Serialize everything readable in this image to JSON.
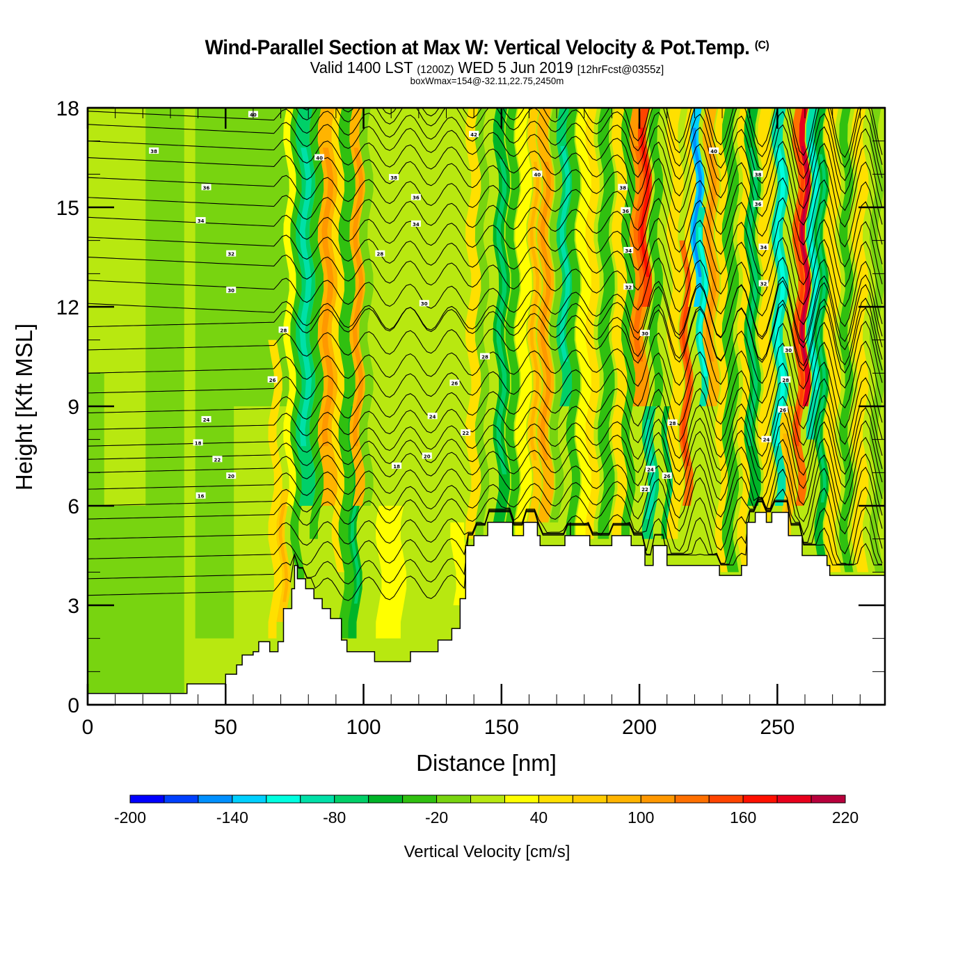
{
  "header": {
    "title": "Wind-Parallel Section at Max W: Vertical Velocity & Pot.Temp.",
    "copyright": "(C)",
    "valid_prefix": "Valid 1400 LST",
    "valid_utc": "(1200Z)",
    "valid_date": "WED 5 Jun 2019",
    "forecast": "[12hrFcst@0355z]",
    "box_wmax": "boxWmax=154@-32.11,22.75,2450m"
  },
  "chart_data": {
    "type": "heatmap",
    "title": "Wind-Parallel Section at Max W: Vertical Velocity & Pot.Temp.",
    "xlabel": "Distance [nm]",
    "ylabel": "Height [Kft MSL]",
    "xlim": [
      0,
      289
    ],
    "ylim": [
      0,
      18
    ],
    "x_ticks": [
      0,
      50,
      100,
      150,
      200,
      250
    ],
    "x_tick_labels": [
      "0",
      "50",
      "100",
      "150",
      "200",
      "250"
    ],
    "y_ticks": [
      0,
      3,
      6,
      9,
      12,
      15,
      18
    ],
    "y_tick_labels": [
      "0",
      "3",
      "6",
      "9",
      "12",
      "15",
      "18"
    ],
    "x_minor_step": 10,
    "y_minor_step": 1,
    "colorbar": {
      "title": "Vertical Velocity [cm/s]",
      "levels": [
        -200,
        -180,
        -160,
        -140,
        -120,
        -100,
        -80,
        -60,
        -40,
        -20,
        0,
        20,
        40,
        60,
        80,
        100,
        120,
        140,
        160,
        180,
        200,
        220
      ],
      "tick_labels": [
        "-200",
        "-140",
        "-80",
        "-20",
        "40",
        "100",
        "160",
        "220"
      ],
      "tick_values": [
        -200,
        -140,
        -80,
        -20,
        40,
        100,
        160,
        220
      ],
      "colors": [
        "#0000ff",
        "#0040ff",
        "#0090ff",
        "#00d0ff",
        "#00ffe0",
        "#00e0a8",
        "#00d068",
        "#00b428",
        "#30c010",
        "#78d410",
        "#b8e810",
        "#ffff00",
        "#ffe000",
        "#ffcc00",
        "#ffb400",
        "#ff9800",
        "#ff7000",
        "#ff4400",
        "#ff1000",
        "#e8001c",
        "#b8003c"
      ]
    },
    "background_w": 10,
    "w_bands": [
      {
        "x": 3,
        "w": -10,
        "z0": 0,
        "z1": 10,
        "width": 6
      },
      {
        "x": 12,
        "w": -10,
        "z0": 0,
        "z1": 6,
        "width": 20
      },
      {
        "x": 28,
        "w": -10,
        "z0": 0,
        "z1": 18,
        "width": 14
      },
      {
        "x": 46,
        "w": -10,
        "z0": 2,
        "z1": 18,
        "width": 14
      },
      {
        "x": 62,
        "w": -10,
        "z0": 9,
        "z1": 18,
        "width": 30
      },
      {
        "x": 68,
        "w": 50,
        "z0": 2,
        "z1": 11,
        "width": 3
      },
      {
        "x": 71,
        "w": 70,
        "z0": 2.5,
        "z1": 6.5,
        "width": 3
      },
      {
        "x": 74,
        "w": 20,
        "z0": 6,
        "z1": 18,
        "width": 4
      },
      {
        "x": 76,
        "w": -40,
        "z0": 3,
        "z1": 18,
        "width": 3
      },
      {
        "x": 79,
        "w": -70,
        "z0": 6,
        "z1": 18,
        "width": 5
      },
      {
        "x": 83,
        "w": -30,
        "z0": 5,
        "z1": 18,
        "width": 3
      },
      {
        "x": 87,
        "w": 80,
        "z0": 6,
        "z1": 18,
        "width": 5
      },
      {
        "x": 91,
        "w": 40,
        "z0": 4,
        "z1": 18,
        "width": 3
      },
      {
        "x": 94,
        "w": -40,
        "z0": 2,
        "z1": 18,
        "width": 4
      },
      {
        "x": 97,
        "w": -60,
        "z0": 2,
        "z1": 9,
        "width": 3
      },
      {
        "x": 98,
        "w": 80,
        "z0": 6,
        "z1": 18,
        "width": 4
      },
      {
        "x": 101,
        "w": -20,
        "z0": 6,
        "z1": 18,
        "width": 3
      },
      {
        "x": 110,
        "w": 30,
        "z0": 2,
        "z1": 6,
        "width": 9
      },
      {
        "x": 135,
        "w": 20,
        "z0": 3,
        "z1": 5.5,
        "width": 5
      },
      {
        "x": 140,
        "w": 40,
        "z0": 5,
        "z1": 18,
        "width": 4
      },
      {
        "x": 143,
        "w": -20,
        "z0": 5,
        "z1": 18,
        "width": 3
      },
      {
        "x": 150,
        "w": -60,
        "z0": 5,
        "z1": 18,
        "width": 4
      },
      {
        "x": 154,
        "w": -30,
        "z0": 5,
        "z1": 18,
        "width": 3
      },
      {
        "x": 158,
        "w": 30,
        "z0": 5,
        "z1": 18,
        "width": 4
      },
      {
        "x": 162,
        "w": 60,
        "z0": 5.5,
        "z1": 18,
        "width": 3
      },
      {
        "x": 166,
        "w": 90,
        "z0": 5.5,
        "z1": 18,
        "width": 4
      },
      {
        "x": 170,
        "w": -20,
        "z0": 5.5,
        "z1": 18,
        "width": 3
      },
      {
        "x": 173,
        "w": -80,
        "z0": 9,
        "z1": 18,
        "width": 4
      },
      {
        "x": 176,
        "w": -40,
        "z0": 5,
        "z1": 18,
        "width": 3
      },
      {
        "x": 180,
        "w": 30,
        "z0": 5,
        "z1": 18,
        "width": 4
      },
      {
        "x": 183,
        "w": 40,
        "z0": 5,
        "z1": 18,
        "width": 3
      },
      {
        "x": 188,
        "w": -30,
        "z0": 5,
        "z1": 18,
        "width": 4
      },
      {
        "x": 193,
        "w": 40,
        "z0": 5,
        "z1": 18,
        "width": 4
      },
      {
        "x": 196,
        "w": -40,
        "z0": 5,
        "z1": 18,
        "width": 3
      },
      {
        "x": 200,
        "w": 100,
        "z0": 9,
        "z1": 18,
        "width": 5
      },
      {
        "x": 202,
        "w": 150,
        "z0": 12,
        "z1": 18,
        "width": 3
      },
      {
        "x": 204,
        "w": -80,
        "z0": 5,
        "z1": 9,
        "width": 4
      },
      {
        "x": 206,
        "w": -30,
        "z0": 9,
        "z1": 18,
        "width": 3
      },
      {
        "x": 211,
        "w": -60,
        "z0": 5,
        "z1": 9,
        "width": 4
      },
      {
        "x": 213,
        "w": 40,
        "z0": 5,
        "z1": 18,
        "width": 4
      },
      {
        "x": 217,
        "w": 130,
        "z0": 6,
        "z1": 14,
        "width": 3
      },
      {
        "x": 219,
        "w": 50,
        "z0": 12,
        "z1": 18,
        "width": 3
      },
      {
        "x": 221,
        "w": -140,
        "z0": 12,
        "z1": 18,
        "width": 3
      },
      {
        "x": 223,
        "w": -90,
        "z0": 9,
        "z1": 15,
        "width": 3
      },
      {
        "x": 226,
        "w": 80,
        "z0": 9,
        "z1": 18,
        "width": 4
      },
      {
        "x": 230,
        "w": 40,
        "z0": 4,
        "z1": 18,
        "width": 3
      },
      {
        "x": 233,
        "w": -40,
        "z0": 4,
        "z1": 18,
        "width": 4
      },
      {
        "x": 238,
        "w": 40,
        "z0": 4,
        "z1": 18,
        "width": 3
      },
      {
        "x": 241,
        "w": -60,
        "z0": 6,
        "z1": 18,
        "width": 4
      },
      {
        "x": 246,
        "w": 40,
        "z0": 5.5,
        "z1": 18,
        "width": 4
      },
      {
        "x": 251,
        "w": -90,
        "z0": 6,
        "z1": 18,
        "width": 4
      },
      {
        "x": 254,
        "w": 60,
        "z0": 4.5,
        "z1": 9,
        "width": 4
      },
      {
        "x": 258,
        "w": 120,
        "z0": 6,
        "z1": 18,
        "width": 3
      },
      {
        "x": 260,
        "w": 190,
        "z0": 9,
        "z1": 18,
        "width": 2
      },
      {
        "x": 263,
        "w": -100,
        "z0": 8,
        "z1": 18,
        "width": 3
      },
      {
        "x": 266,
        "w": -60,
        "z0": 4,
        "z1": 18,
        "width": 3
      },
      {
        "x": 270,
        "w": 40,
        "z0": 4,
        "z1": 18,
        "width": 4
      },
      {
        "x": 275,
        "w": -30,
        "z0": 4,
        "z1": 18,
        "width": 3
      },
      {
        "x": 280,
        "w": 40,
        "z0": 4,
        "z1": 18,
        "width": 4
      },
      {
        "x": 286,
        "w": -20,
        "z0": 4,
        "z1": 18,
        "width": 3
      }
    ],
    "terrain": {
      "x": [
        0,
        36,
        36,
        50,
        50,
        54,
        54,
        56,
        56,
        60,
        60,
        62,
        62,
        66,
        66,
        69,
        69,
        71,
        71,
        74,
        74,
        75,
        75,
        76,
        76,
        79,
        79,
        82,
        82,
        85,
        85,
        88,
        88,
        92,
        92,
        94,
        94,
        104,
        104,
        117,
        117,
        127,
        127,
        132,
        132,
        135,
        135,
        137,
        137,
        140,
        140,
        145,
        145,
        154,
        154,
        158,
        158,
        163,
        163,
        164,
        164,
        173,
        173,
        175,
        175,
        175,
        175,
        182,
        182,
        190,
        190,
        197,
        197,
        202,
        202,
        205,
        205,
        210,
        210,
        211,
        211,
        229,
        229,
        237,
        237,
        239,
        239,
        242,
        242,
        246,
        246,
        248,
        248,
        254,
        254,
        259,
        259,
        268,
        268,
        269,
        269,
        289
      ],
      "h": [
        0.34,
        0.34,
        0.63,
        0.63,
        0.92,
        0.92,
        1.2,
        1.2,
        1.5,
        1.5,
        1.6,
        1.6,
        1.9,
        1.9,
        1.6,
        1.6,
        1.9,
        1.9,
        2.9,
        2.9,
        3.5,
        3.5,
        4.2,
        4.2,
        3.8,
        3.8,
        3.5,
        3.5,
        3.2,
        3.2,
        2.9,
        2.9,
        2.6,
        2.6,
        1.95,
        1.95,
        1.6,
        1.6,
        1.3,
        1.3,
        1.6,
        1.6,
        1.95,
        1.95,
        2.3,
        2.3,
        3.2,
        3.2,
        4.8,
        4.8,
        5.1,
        5.1,
        5.5,
        5.5,
        5.1,
        5.1,
        5.5,
        5.5,
        5.1,
        5.1,
        4.8,
        4.8,
        5.1,
        5.1,
        5.5,
        5.5,
        5.1,
        5.1,
        4.8,
        4.8,
        5.1,
        5.1,
        4.8,
        4.8,
        4.2,
        4.2,
        4.8,
        4.8,
        4.2,
        4.2,
        4.2,
        4.2,
        3.9,
        3.9,
        4.2,
        4.2,
        5.5,
        5.5,
        5.8,
        5.8,
        5.5,
        5.5,
        5.8,
        5.8,
        5.1,
        5.1,
        4.5,
        4.5,
        4.2,
        4.2,
        3.9,
        3.9
      ]
    },
    "theta_contours": {
      "levels": [
        14,
        15,
        16,
        17,
        18,
        19,
        20,
        21,
        22,
        23,
        24,
        25,
        26,
        27,
        28,
        29,
        30,
        31,
        32,
        33,
        34,
        35,
        36,
        37,
        38,
        39,
        40,
        41,
        42
      ],
      "base_heights_kft": [
        3.3,
        3.8,
        4.4,
        5.0,
        5.6,
        6.0,
        6.5,
        7.0,
        7.4,
        7.8,
        8.3,
        8.8,
        9.4,
        10.0,
        10.7,
        11.4,
        12.1,
        12.8,
        13.5,
        14.1,
        14.7,
        15.3,
        15.9,
        16.5,
        17.0,
        17.5,
        17.9,
        18.3,
        18.6
      ],
      "labels": [
        {
          "x": 41,
          "z": 6.3,
          "text": "16"
        },
        {
          "x": 40,
          "z": 7.9,
          "text": "18"
        },
        {
          "x": 52,
          "z": 6.9,
          "text": "20"
        },
        {
          "x": 47,
          "z": 7.4,
          "text": "22"
        },
        {
          "x": 43,
          "z": 8.6,
          "text": "24"
        },
        {
          "x": 67,
          "z": 9.8,
          "text": "26"
        },
        {
          "x": 71,
          "z": 11.3,
          "text": "28"
        },
        {
          "x": 52,
          "z": 12.5,
          "text": "30"
        },
        {
          "x": 52,
          "z": 13.6,
          "text": "32"
        },
        {
          "x": 41,
          "z": 14.6,
          "text": "34"
        },
        {
          "x": 43,
          "z": 15.6,
          "text": "36"
        },
        {
          "x": 24,
          "z": 16.7,
          "text": "38"
        },
        {
          "x": 60,
          "z": 17.8,
          "text": "40"
        },
        {
          "x": 84,
          "z": 16.5,
          "text": "40"
        },
        {
          "x": 106,
          "z": 13.6,
          "text": "28"
        },
        {
          "x": 122,
          "z": 12.1,
          "text": "30"
        },
        {
          "x": 119,
          "z": 14.5,
          "text": "34"
        },
        {
          "x": 119,
          "z": 15.3,
          "text": "36"
        },
        {
          "x": 111,
          "z": 15.9,
          "text": "38"
        },
        {
          "x": 112,
          "z": 7.2,
          "text": "18"
        },
        {
          "x": 123,
          "z": 7.5,
          "text": "20"
        },
        {
          "x": 125,
          "z": 8.7,
          "text": "24"
        },
        {
          "x": 137,
          "z": 8.2,
          "text": "22"
        },
        {
          "x": 133,
          "z": 9.7,
          "text": "26"
        },
        {
          "x": 144,
          "z": 10.5,
          "text": "28"
        },
        {
          "x": 140,
          "z": 17.2,
          "text": "42"
        },
        {
          "x": 163,
          "z": 16.0,
          "text": "40"
        },
        {
          "x": 194,
          "z": 15.6,
          "text": "38"
        },
        {
          "x": 195,
          "z": 14.9,
          "text": "36"
        },
        {
          "x": 196,
          "z": 13.7,
          "text": "34"
        },
        {
          "x": 196,
          "z": 12.6,
          "text": "32"
        },
        {
          "x": 202,
          "z": 11.2,
          "text": "30"
        },
        {
          "x": 212,
          "z": 8.5,
          "text": "28"
        },
        {
          "x": 204,
          "z": 7.1,
          "text": "24"
        },
        {
          "x": 210,
          "z": 6.9,
          "text": "26"
        },
        {
          "x": 202,
          "z": 6.5,
          "text": "22"
        },
        {
          "x": 227,
          "z": 16.7,
          "text": "40"
        },
        {
          "x": 243,
          "z": 16.0,
          "text": "38"
        },
        {
          "x": 243,
          "z": 15.1,
          "text": "36"
        },
        {
          "x": 245,
          "z": 13.8,
          "text": "34"
        },
        {
          "x": 245,
          "z": 12.7,
          "text": "32"
        },
        {
          "x": 254,
          "z": 10.7,
          "text": "30"
        },
        {
          "x": 253,
          "z": 9.8,
          "text": "28"
        },
        {
          "x": 252,
          "z": 8.9,
          "text": "26"
        },
        {
          "x": 246,
          "z": 8.0,
          "text": "24"
        }
      ]
    }
  }
}
